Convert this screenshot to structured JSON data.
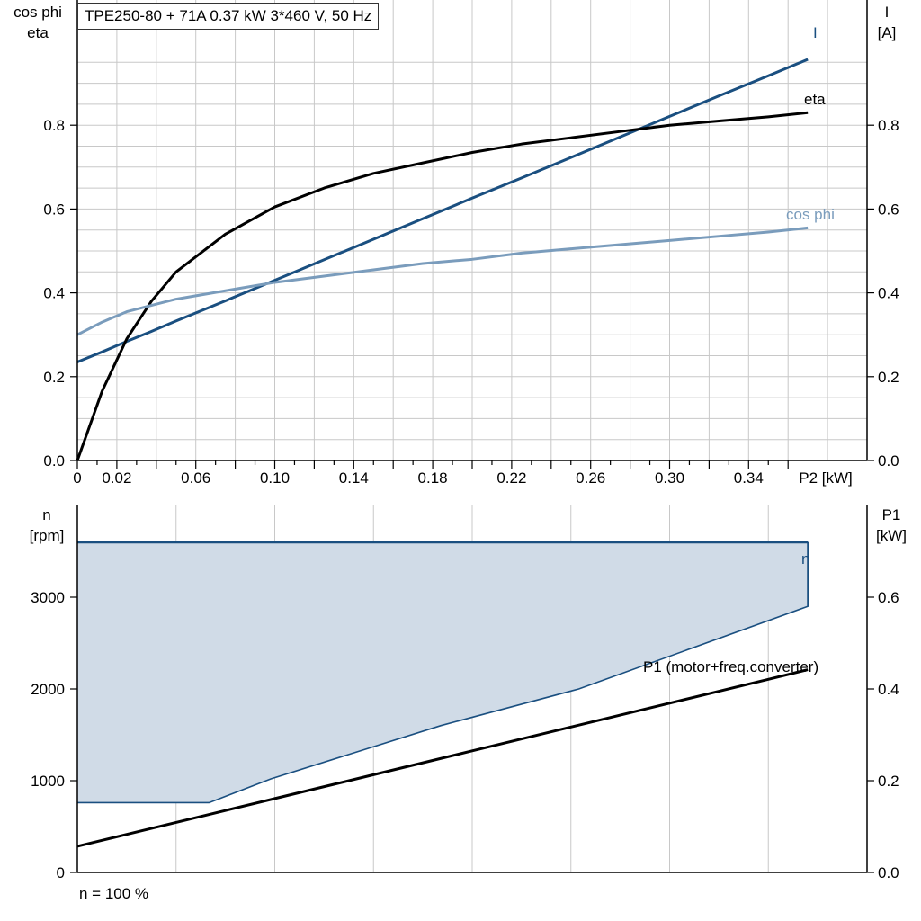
{
  "title": "TPE250-80 + 71A   0.37 kW   3*460 V, 50 Hz",
  "footer": "n = 100 %",
  "colors": {
    "I": "#1a4f80",
    "eta": "#000000",
    "cos_phi": "#7a9cbc",
    "n": "#1a4f80",
    "n_fill": "#d0dbe7",
    "P1": "#000000",
    "grid": "#c8c8c8"
  },
  "chart_data": [
    {
      "type": "line",
      "x": [
        0,
        0.0125,
        0.025,
        0.0375,
        0.05,
        0.075,
        0.1,
        0.125,
        0.15,
        0.175,
        0.2,
        0.225,
        0.25,
        0.275,
        0.3,
        0.325,
        0.35,
        0.37
      ],
      "xlabel": "P2 [kW]",
      "xticks": [
        "0",
        "0.02",
        "0.06",
        "0.10",
        "0.14",
        "0.18",
        "0.22",
        "0.26",
        "0.30",
        "0.34"
      ],
      "xlim": [
        0,
        0.4
      ],
      "ylabel_left": [
        "cos phi",
        "eta"
      ],
      "ylim_left": [
        0,
        1.0
      ],
      "yticks_left": [
        "0.0",
        "0.2",
        "0.4",
        "0.6",
        "0.8"
      ],
      "ylabel_right": [
        "I",
        "[A]"
      ],
      "ylim_right": [
        0,
        1.0
      ],
      "yticks_right": [
        "0.0",
        "0.2",
        "0.4",
        "0.6",
        "0.8"
      ],
      "grid": true,
      "series": [
        {
          "name": "I",
          "axis": "right",
          "values": [
            0.235,
            0.259,
            0.284,
            0.308,
            0.333,
            0.381,
            0.43,
            0.479,
            0.528,
            0.577,
            0.626,
            0.674,
            0.723,
            0.772,
            0.821,
            0.87,
            0.918,
            0.957
          ]
        },
        {
          "name": "eta",
          "axis": "left",
          "values": [
            0.0,
            0.165,
            0.29,
            0.38,
            0.45,
            0.54,
            0.605,
            0.65,
            0.685,
            0.71,
            0.735,
            0.755,
            0.77,
            0.785,
            0.8,
            0.81,
            0.82,
            0.83
          ]
        },
        {
          "name": "cos phi",
          "axis": "left",
          "values": [
            0.3,
            0.33,
            0.355,
            0.37,
            0.385,
            0.405,
            0.425,
            0.44,
            0.455,
            0.47,
            0.48,
            0.495,
            0.505,
            0.515,
            0.525,
            0.535,
            0.545,
            0.555
          ]
        }
      ]
    },
    {
      "type": "area",
      "x": [
        0,
        0.0125,
        0.025,
        0.0375,
        0.05,
        0.075,
        0.1,
        0.125,
        0.15,
        0.175,
        0.2,
        0.225,
        0.25,
        0.275,
        0.3,
        0.325,
        0.35,
        0.37
      ],
      "xlim": [
        0,
        0.4
      ],
      "ylabel_left": [
        "n",
        "[rpm]"
      ],
      "ylim_left": [
        0,
        4000
      ],
      "yticks_left": [
        "0",
        "1000",
        "2000",
        "3000"
      ],
      "ylabel_right": [
        "P1",
        "[kW]"
      ],
      "ylim_right": [
        0,
        0.8
      ],
      "yticks_right": [
        "0.0",
        "0.2",
        "0.4",
        "0.6"
      ],
      "grid": true,
      "series": [
        {
          "name": "n",
          "axis": "left",
          "values": [
            3600,
            3600,
            3600,
            3600,
            3600,
            3600,
            3600,
            3600,
            3600,
            3600,
            3600,
            3600,
            3600,
            3600,
            3600,
            3600,
            3600,
            3600
          ]
        },
        {
          "name": "P1 (motor+freq.converter)",
          "axis": "right",
          "values": [
            0.057,
            0.07,
            0.083,
            0.096,
            0.109,
            0.135,
            0.161,
            0.187,
            0.213,
            0.239,
            0.265,
            0.291,
            0.317,
            0.343,
            0.369,
            0.395,
            0.421,
            0.442
          ]
        }
      ],
      "shaded_region": {
        "x": [
          0,
          0.0667,
          0.098,
          0.184,
          0.254,
          0.37,
          0.37
        ],
        "lower": [
          760,
          760,
          1020,
          1600,
          2000,
          2900,
          3600
        ],
        "upper": 3600
      }
    }
  ]
}
